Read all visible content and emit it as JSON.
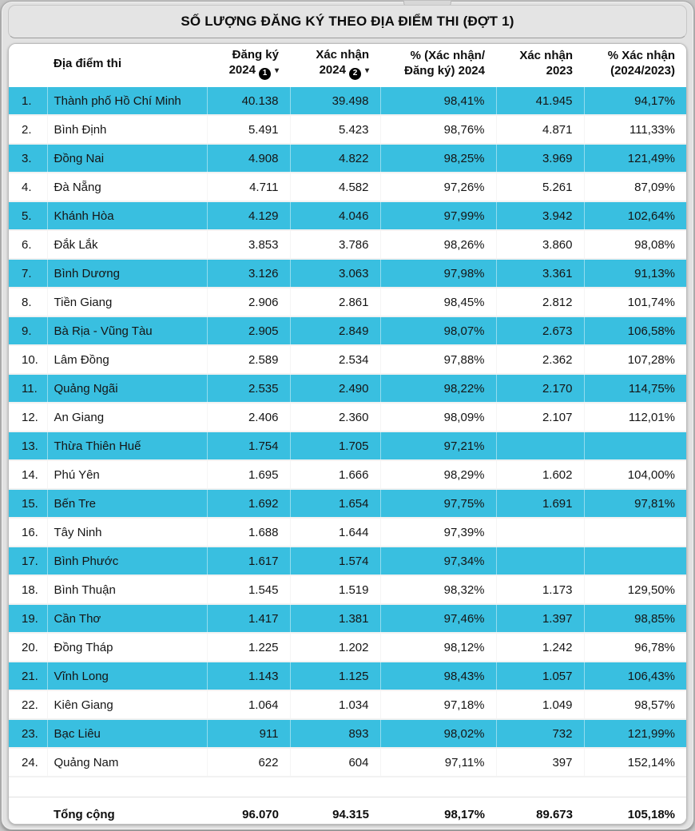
{
  "title": "SỐ LƯỢNG ĐĂNG KÝ THEO ĐỊA ĐIỂM THI (ĐỢT 1)",
  "colors": {
    "row_highlight": "#39bfe0",
    "row_alt": "#ffffff",
    "title_bar_bg": "#e4e4e4",
    "frame_bg": "#e2e2e2",
    "text": "#141414"
  },
  "header": {
    "location": "Địa điểm thi",
    "dk2024": {
      "line1": "Đăng ký",
      "line2": "2024",
      "badge": "1",
      "sort_caret": "▾"
    },
    "xn2024": {
      "line1": "Xác nhận",
      "line2": "2024",
      "badge": "2",
      "sort_caret": "▾"
    },
    "pct2024": {
      "line1": "% (Xác nhận/",
      "line2": "Đăng ký) 2024"
    },
    "xn2023": {
      "line1": "Xác nhận",
      "line2": "2023"
    },
    "pct_2024_2023": {
      "line1": "% Xác nhận",
      "line2": "(2024/2023)"
    }
  },
  "rows": [
    {
      "rank": "1.",
      "name": "Thành phố Hồ Chí Minh",
      "dk2024": "40.138",
      "xn2024": "39.498",
      "pct2024": "98,41%",
      "xn2023": "41.945",
      "pct_2024_2023": "94,17%"
    },
    {
      "rank": "2.",
      "name": "Bình Định",
      "dk2024": "5.491",
      "xn2024": "5.423",
      "pct2024": "98,76%",
      "xn2023": "4.871",
      "pct_2024_2023": "111,33%"
    },
    {
      "rank": "3.",
      "name": "Đồng Nai",
      "dk2024": "4.908",
      "xn2024": "4.822",
      "pct2024": "98,25%",
      "xn2023": "3.969",
      "pct_2024_2023": "121,49%"
    },
    {
      "rank": "4.",
      "name": "Đà Nẵng",
      "dk2024": "4.711",
      "xn2024": "4.582",
      "pct2024": "97,26%",
      "xn2023": "5.261",
      "pct_2024_2023": "87,09%"
    },
    {
      "rank": "5.",
      "name": "Khánh Hòa",
      "dk2024": "4.129",
      "xn2024": "4.046",
      "pct2024": "97,99%",
      "xn2023": "3.942",
      "pct_2024_2023": "102,64%"
    },
    {
      "rank": "6.",
      "name": "Đắk Lắk",
      "dk2024": "3.853",
      "xn2024": "3.786",
      "pct2024": "98,26%",
      "xn2023": "3.860",
      "pct_2024_2023": "98,08%"
    },
    {
      "rank": "7.",
      "name": "Bình Dương",
      "dk2024": "3.126",
      "xn2024": "3.063",
      "pct2024": "97,98%",
      "xn2023": "3.361",
      "pct_2024_2023": "91,13%"
    },
    {
      "rank": "8.",
      "name": "Tiền Giang",
      "dk2024": "2.906",
      "xn2024": "2.861",
      "pct2024": "98,45%",
      "xn2023": "2.812",
      "pct_2024_2023": "101,74%"
    },
    {
      "rank": "9.",
      "name": "Bà Rịa - Vũng Tàu",
      "dk2024": "2.905",
      "xn2024": "2.849",
      "pct2024": "98,07%",
      "xn2023": "2.673",
      "pct_2024_2023": "106,58%"
    },
    {
      "rank": "10.",
      "name": "Lâm Đồng",
      "dk2024": "2.589",
      "xn2024": "2.534",
      "pct2024": "97,88%",
      "xn2023": "2.362",
      "pct_2024_2023": "107,28%"
    },
    {
      "rank": "11.",
      "name": "Quảng Ngãi",
      "dk2024": "2.535",
      "xn2024": "2.490",
      "pct2024": "98,22%",
      "xn2023": "2.170",
      "pct_2024_2023": "114,75%"
    },
    {
      "rank": "12.",
      "name": "An Giang",
      "dk2024": "2.406",
      "xn2024": "2.360",
      "pct2024": "98,09%",
      "xn2023": "2.107",
      "pct_2024_2023": "112,01%"
    },
    {
      "rank": "13.",
      "name": "Thừa Thiên Huế",
      "dk2024": "1.754",
      "xn2024": "1.705",
      "pct2024": "97,21%",
      "xn2023": "",
      "pct_2024_2023": ""
    },
    {
      "rank": "14.",
      "name": "Phú Yên",
      "dk2024": "1.695",
      "xn2024": "1.666",
      "pct2024": "98,29%",
      "xn2023": "1.602",
      "pct_2024_2023": "104,00%"
    },
    {
      "rank": "15.",
      "name": "Bến Tre",
      "dk2024": "1.692",
      "xn2024": "1.654",
      "pct2024": "97,75%",
      "xn2023": "1.691",
      "pct_2024_2023": "97,81%"
    },
    {
      "rank": "16.",
      "name": "Tây Ninh",
      "dk2024": "1.688",
      "xn2024": "1.644",
      "pct2024": "97,39%",
      "xn2023": "",
      "pct_2024_2023": ""
    },
    {
      "rank": "17.",
      "name": "Bình Phước",
      "dk2024": "1.617",
      "xn2024": "1.574",
      "pct2024": "97,34%",
      "xn2023": "",
      "pct_2024_2023": ""
    },
    {
      "rank": "18.",
      "name": "Bình Thuận",
      "dk2024": "1.545",
      "xn2024": "1.519",
      "pct2024": "98,32%",
      "xn2023": "1.173",
      "pct_2024_2023": "129,50%"
    },
    {
      "rank": "19.",
      "name": "Cần Thơ",
      "dk2024": "1.417",
      "xn2024": "1.381",
      "pct2024": "97,46%",
      "xn2023": "1.397",
      "pct_2024_2023": "98,85%"
    },
    {
      "rank": "20.",
      "name": "Đồng Tháp",
      "dk2024": "1.225",
      "xn2024": "1.202",
      "pct2024": "98,12%",
      "xn2023": "1.242",
      "pct_2024_2023": "96,78%"
    },
    {
      "rank": "21.",
      "name": "Vĩnh Long",
      "dk2024": "1.143",
      "xn2024": "1.125",
      "pct2024": "98,43%",
      "xn2023": "1.057",
      "pct_2024_2023": "106,43%"
    },
    {
      "rank": "22.",
      "name": "Kiên Giang",
      "dk2024": "1.064",
      "xn2024": "1.034",
      "pct2024": "97,18%",
      "xn2023": "1.049",
      "pct_2024_2023": "98,57%"
    },
    {
      "rank": "23.",
      "name": "Bạc Liêu",
      "dk2024": "911",
      "xn2024": "893",
      "pct2024": "98,02%",
      "xn2023": "732",
      "pct_2024_2023": "121,99%"
    },
    {
      "rank": "24.",
      "name": "Quảng Nam",
      "dk2024": "622",
      "xn2024": "604",
      "pct2024": "97,11%",
      "xn2023": "397",
      "pct_2024_2023": "152,14%"
    }
  ],
  "total": {
    "label": "Tổng cộng",
    "dk2024": "96.070",
    "xn2024": "94.315",
    "pct2024": "98,17%",
    "xn2023": "89.673",
    "pct_2024_2023": "105,18%"
  }
}
